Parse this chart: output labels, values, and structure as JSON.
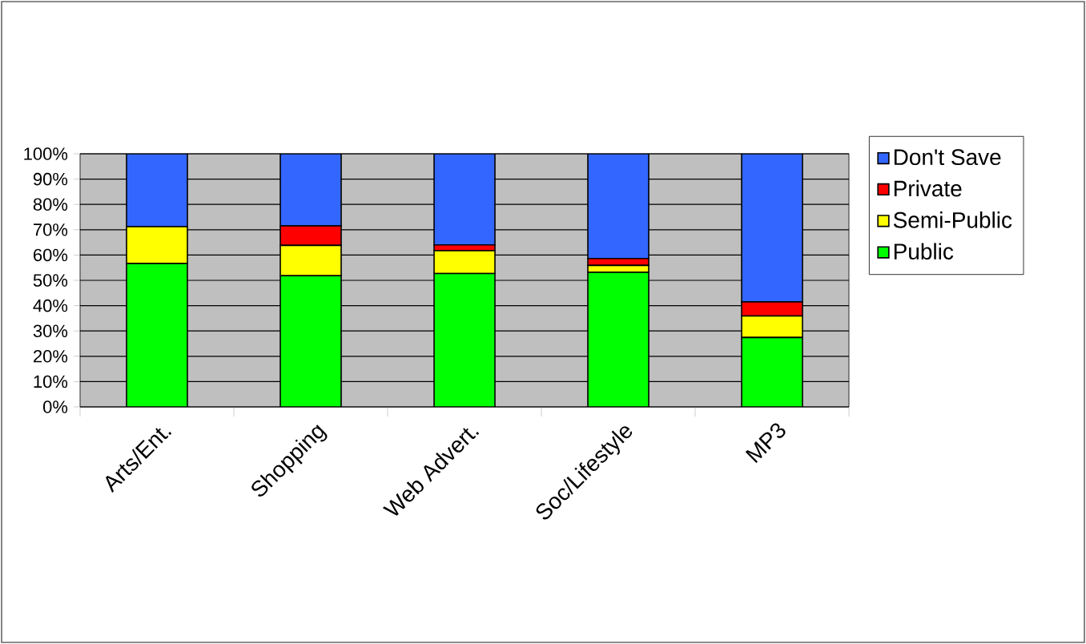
{
  "chart_data": {
    "type": "bar",
    "stacked": true,
    "categories": [
      "Arts/Ent.",
      "Shopping",
      "Web Advert.",
      "Soc/Lifestyle",
      "MP3"
    ],
    "series": [
      {
        "name": "Public",
        "color": "#00ff00",
        "values": [
          56.7,
          51.8,
          52.7,
          53.2,
          27.4
        ]
      },
      {
        "name": "Semi-Public",
        "color": "#ffff00",
        "values": [
          14.5,
          12.0,
          9.0,
          2.7,
          8.5
        ]
      },
      {
        "name": "Private",
        "color": "#ff0000",
        "values": [
          0,
          7.7,
          2.3,
          2.7,
          5.6
        ]
      },
      {
        "name": "Don't Save",
        "color": "#3366ff",
        "values": [
          28.8,
          28.5,
          36.0,
          41.4,
          58.5
        ]
      }
    ],
    "ylim": [
      0,
      100
    ],
    "yticks": [
      {
        "value": 0,
        "label": "0%"
      },
      {
        "value": 10,
        "label": "10%"
      },
      {
        "value": 20,
        "label": "20%"
      },
      {
        "value": 30,
        "label": "30%"
      },
      {
        "value": 40,
        "label": "40%"
      },
      {
        "value": 50,
        "label": "50%"
      },
      {
        "value": 60,
        "label": "60%"
      },
      {
        "value": 70,
        "label": "70%"
      },
      {
        "value": 80,
        "label": "80%"
      },
      {
        "value": 90,
        "label": "90%"
      },
      {
        "value": 100,
        "label": "100%"
      }
    ],
    "grid": "y",
    "legend": "right"
  }
}
